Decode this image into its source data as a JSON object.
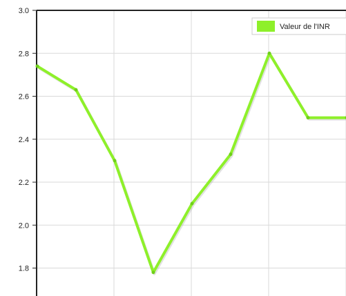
{
  "chart_data": {
    "type": "line",
    "x": [
      1,
      2,
      3,
      4,
      5,
      6,
      7,
      8,
      9
    ],
    "series": [
      {
        "name": "Valeur de l'INR",
        "values": [
          2.74,
          2.63,
          2.3,
          1.78,
          2.1,
          2.33,
          2.8,
          2.5,
          2.5
        ],
        "color": "#8ef02a"
      }
    ],
    "ylim": [
      1.67,
      3.0
    ],
    "y_ticks": [
      "3.0",
      "2.8",
      "2.6",
      "2.4",
      "2.2",
      "2.0",
      "1.8"
    ],
    "grid": true,
    "legend_position": "top-right",
    "title": "",
    "xlabel": "",
    "ylabel": ""
  },
  "colors": {
    "series": "#8ef02a",
    "series_shadow": "#aaaaaa",
    "grid": "#d9d9d9",
    "axis": "#222222"
  }
}
